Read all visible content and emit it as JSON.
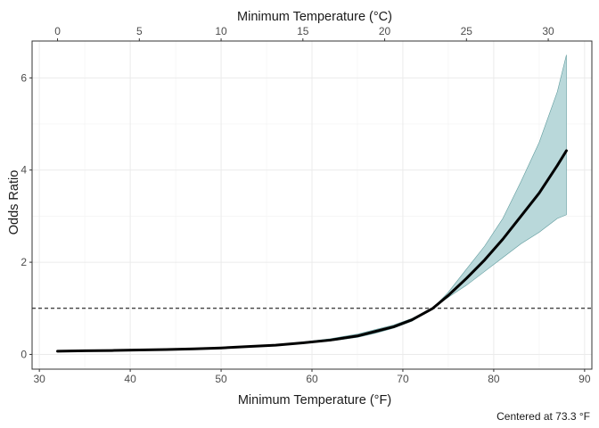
{
  "chart_data": {
    "type": "line",
    "xlabel": "Minimum Temperature (°F)",
    "x2label": "Minimum Temperature (°C)",
    "ylabel": "Odds Ratio",
    "caption": "Centered at 73.3 °F",
    "xlim": [
      29.2,
      90.8
    ],
    "ylim": [
      -0.32,
      6.8
    ],
    "x_ticks": [
      30,
      40,
      50,
      60,
      70,
      80,
      90
    ],
    "x2_ticks": [
      0,
      5,
      10,
      15,
      20,
      25,
      30
    ],
    "y_ticks": [
      0,
      2,
      4,
      6
    ],
    "reference_line": {
      "y": 1,
      "style": "dashed"
    },
    "grid": true,
    "colors": {
      "ribbon": "#b9d8da",
      "ribbon_edge": "#5e9a9c",
      "line": "#000000"
    },
    "series": [
      {
        "x": [
          32,
          35,
          38,
          41,
          44,
          47,
          50,
          53,
          56,
          59,
          62,
          65,
          67,
          69,
          71,
          73.3,
          75,
          77,
          79,
          81,
          83,
          85,
          87,
          88
        ],
        "y": [
          0.07,
          0.08,
          0.085,
          0.095,
          0.105,
          0.12,
          0.14,
          0.17,
          0.2,
          0.25,
          0.31,
          0.4,
          0.5,
          0.6,
          0.75,
          1.0,
          1.28,
          1.65,
          2.05,
          2.5,
          3.0,
          3.5,
          4.1,
          4.42
        ],
        "lower": [
          0.06,
          0.07,
          0.08,
          0.09,
          0.1,
          0.115,
          0.135,
          0.16,
          0.19,
          0.24,
          0.29,
          0.37,
          0.46,
          0.57,
          0.72,
          1.0,
          1.24,
          1.5,
          1.8,
          2.1,
          2.4,
          2.65,
          2.95,
          3.03
        ],
        "upper": [
          0.08,
          0.09,
          0.095,
          0.105,
          0.115,
          0.13,
          0.15,
          0.18,
          0.21,
          0.27,
          0.34,
          0.44,
          0.54,
          0.64,
          0.78,
          1.0,
          1.35,
          1.85,
          2.35,
          2.95,
          3.75,
          4.6,
          5.7,
          6.5
        ]
      }
    ]
  }
}
